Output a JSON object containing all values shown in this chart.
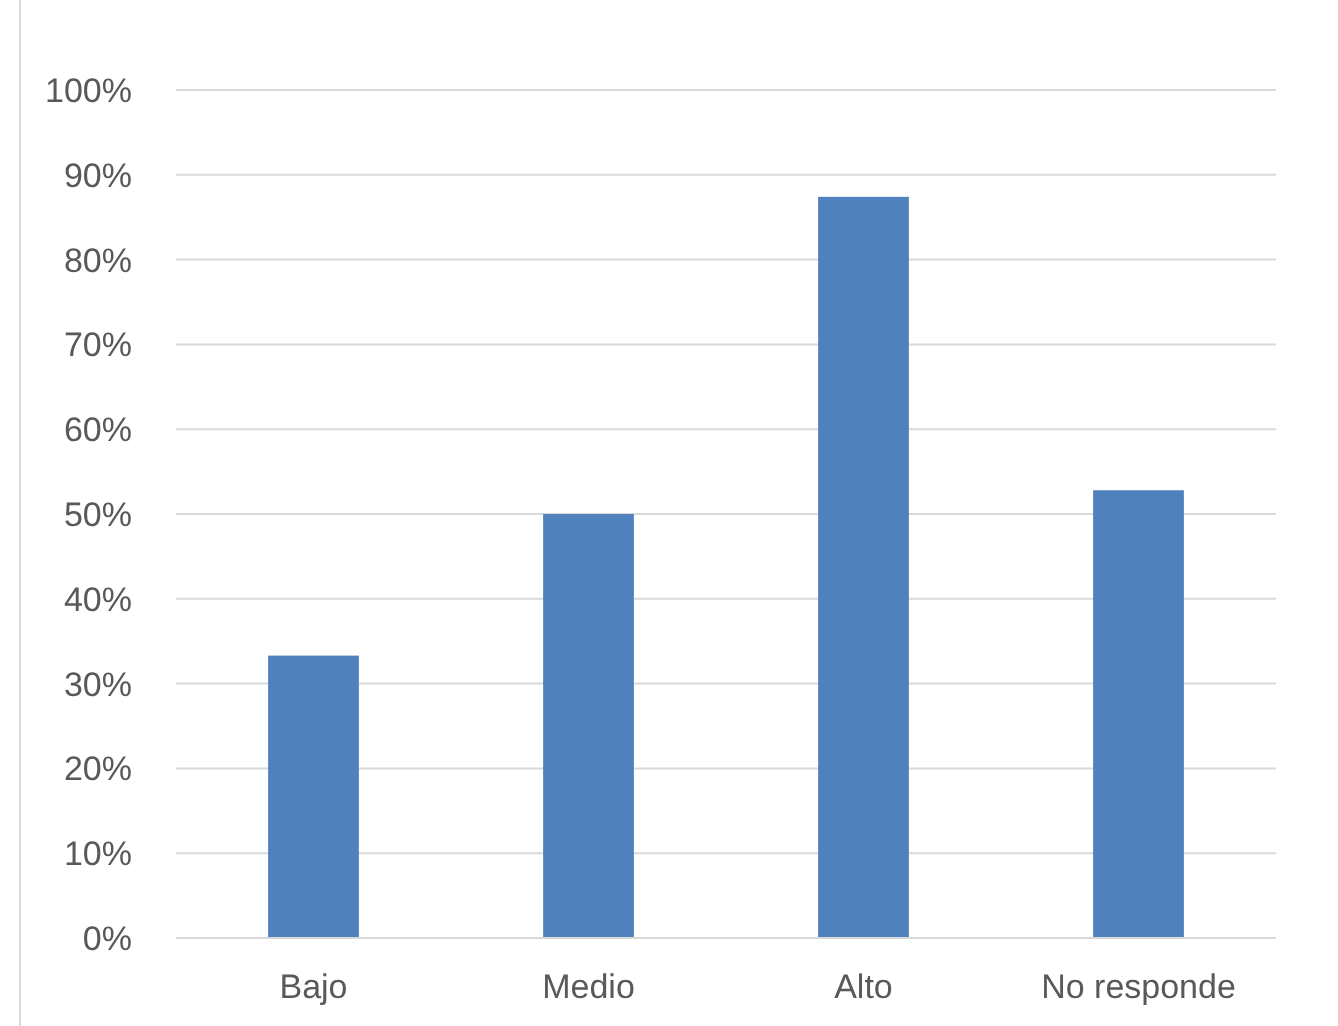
{
  "chart_data": {
    "type": "bar",
    "categories": [
      "Bajo",
      "Medio",
      "Alto",
      "No responde"
    ],
    "values": [
      33.3,
      50,
      87.4,
      52.8
    ],
    "color": "#4f81bd",
    "ylim": [
      0,
      100
    ],
    "yticks": [
      {
        "value": 0,
        "label": "0%"
      },
      {
        "value": 10,
        "label": "10%"
      },
      {
        "value": 20,
        "label": "20%"
      },
      {
        "value": 30,
        "label": "30%"
      },
      {
        "value": 40,
        "label": "40%"
      },
      {
        "value": 50,
        "label": "50%"
      },
      {
        "value": 60,
        "label": "60%"
      },
      {
        "value": 70,
        "label": "70%"
      },
      {
        "value": 80,
        "label": "80%"
      },
      {
        "value": 90,
        "label": "90%"
      },
      {
        "value": 100,
        "label": "100%"
      }
    ],
    "grid": "y"
  }
}
